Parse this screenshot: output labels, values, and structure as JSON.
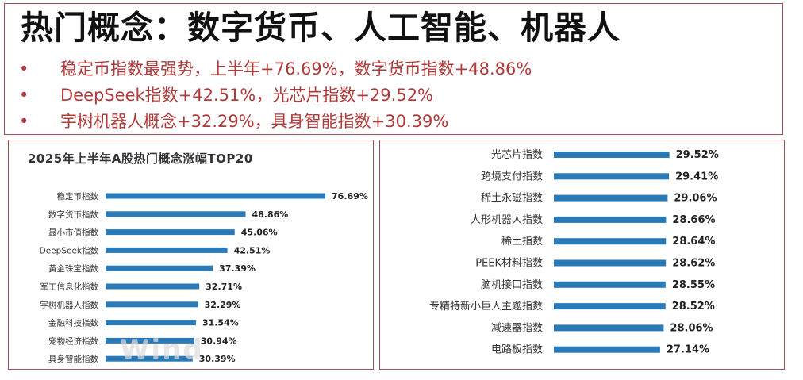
{
  "header": {
    "title": "热门概念：数字货币、人工智能、机器人",
    "bullet_symbol": "•",
    "bullets": [
      "稳定币指数最强势，上半年+76.69%，数字货币指数+48.86%",
      "DeepSeek指数+42.51%，光芯片指数+29.52%",
      "宇树机器人概念+32.29%，具身智能指数+30.39%"
    ]
  },
  "watermark": "Wind",
  "colors": {
    "bar": "#2a7ab8",
    "border": "#a05050",
    "bullet_text": "#b03a3a"
  },
  "chart_data": [
    {
      "type": "bar",
      "orientation": "horizontal",
      "title": "2025年上半年A股热门概念涨幅TOP20",
      "categories": [
        "稳定币指数",
        "数字货币指数",
        "最小市值指数",
        "DeepSeek指数",
        "黄金珠宝指数",
        "军工信息化指数",
        "宇树机器人指数",
        "金融科技指数",
        "宠物经济指数",
        "具身智能指数"
      ],
      "values": [
        76.69,
        48.86,
        45.06,
        42.51,
        37.39,
        32.71,
        32.29,
        31.54,
        30.94,
        30.39
      ],
      "value_labels": [
        "76.69%",
        "48.86%",
        "45.06%",
        "42.51%",
        "37.39%",
        "32.71%",
        "32.29%",
        "31.54%",
        "30.94%",
        "30.39%"
      ],
      "xlim": [
        0,
        80
      ],
      "grid": false
    },
    {
      "type": "bar",
      "orientation": "horizontal",
      "title": "",
      "categories": [
        "光芯片指数",
        "跨境支付指数",
        "稀土永磁指数",
        "人形机器人指数",
        "稀土指数",
        "PEEK材料指数",
        "脑机接口指数",
        "专精特新小巨人主题指数",
        "减速器指数",
        "电路板指数"
      ],
      "values": [
        29.52,
        29.41,
        29.06,
        28.66,
        28.64,
        28.62,
        28.55,
        28.52,
        28.06,
        27.14
      ],
      "value_labels": [
        "29.52%",
        "29.41%",
        "29.06%",
        "28.66%",
        "28.64%",
        "28.62%",
        "28.55%",
        "28.52%",
        "28.06%",
        "27.14%"
      ],
      "xlim": [
        0,
        30
      ],
      "grid": false
    }
  ]
}
